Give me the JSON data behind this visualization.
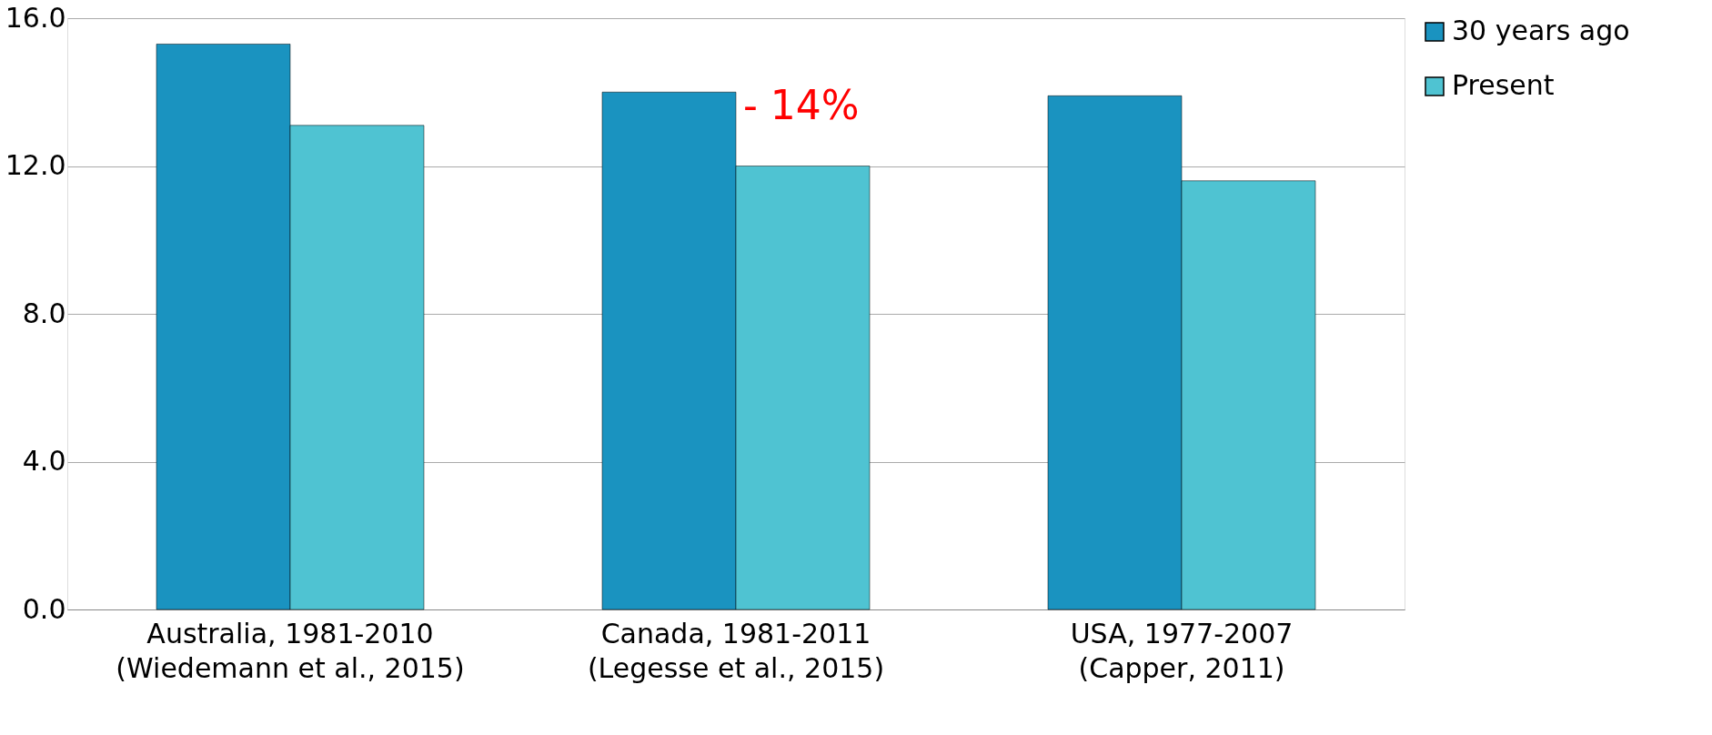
{
  "chart_data": {
    "type": "bar",
    "categories": [
      "Australia, 1981-2010\n(Wiedemann et al., 2015)",
      "Canada, 1981-2011\n(Legesse et al., 2015)",
      "USA, 1977-2007\n(Capper, 2011)"
    ],
    "series": [
      {
        "name": "30 years ago",
        "color": "#1a93c0",
        "values": [
          15.3,
          14.0,
          13.9
        ]
      },
      {
        "name": "Present",
        "color": "#4fc3d2",
        "values": [
          13.1,
          12.0,
          11.6
        ]
      }
    ],
    "ylim": [
      0,
      16
    ],
    "yticks": [
      {
        "value": 0,
        "label": "0.0"
      },
      {
        "value": 4,
        "label": "4.0"
      },
      {
        "value": 8,
        "label": "8.0"
      },
      {
        "value": 12,
        "label": "12.0"
      },
      {
        "value": 16,
        "label": "16.0"
      }
    ],
    "grid": "y",
    "legend": "right",
    "annotations": [
      {
        "text": "- 14%",
        "x": "Canada, 1981-2011\n(Legesse et al., 2015)",
        "y": 13.6
      }
    ]
  }
}
